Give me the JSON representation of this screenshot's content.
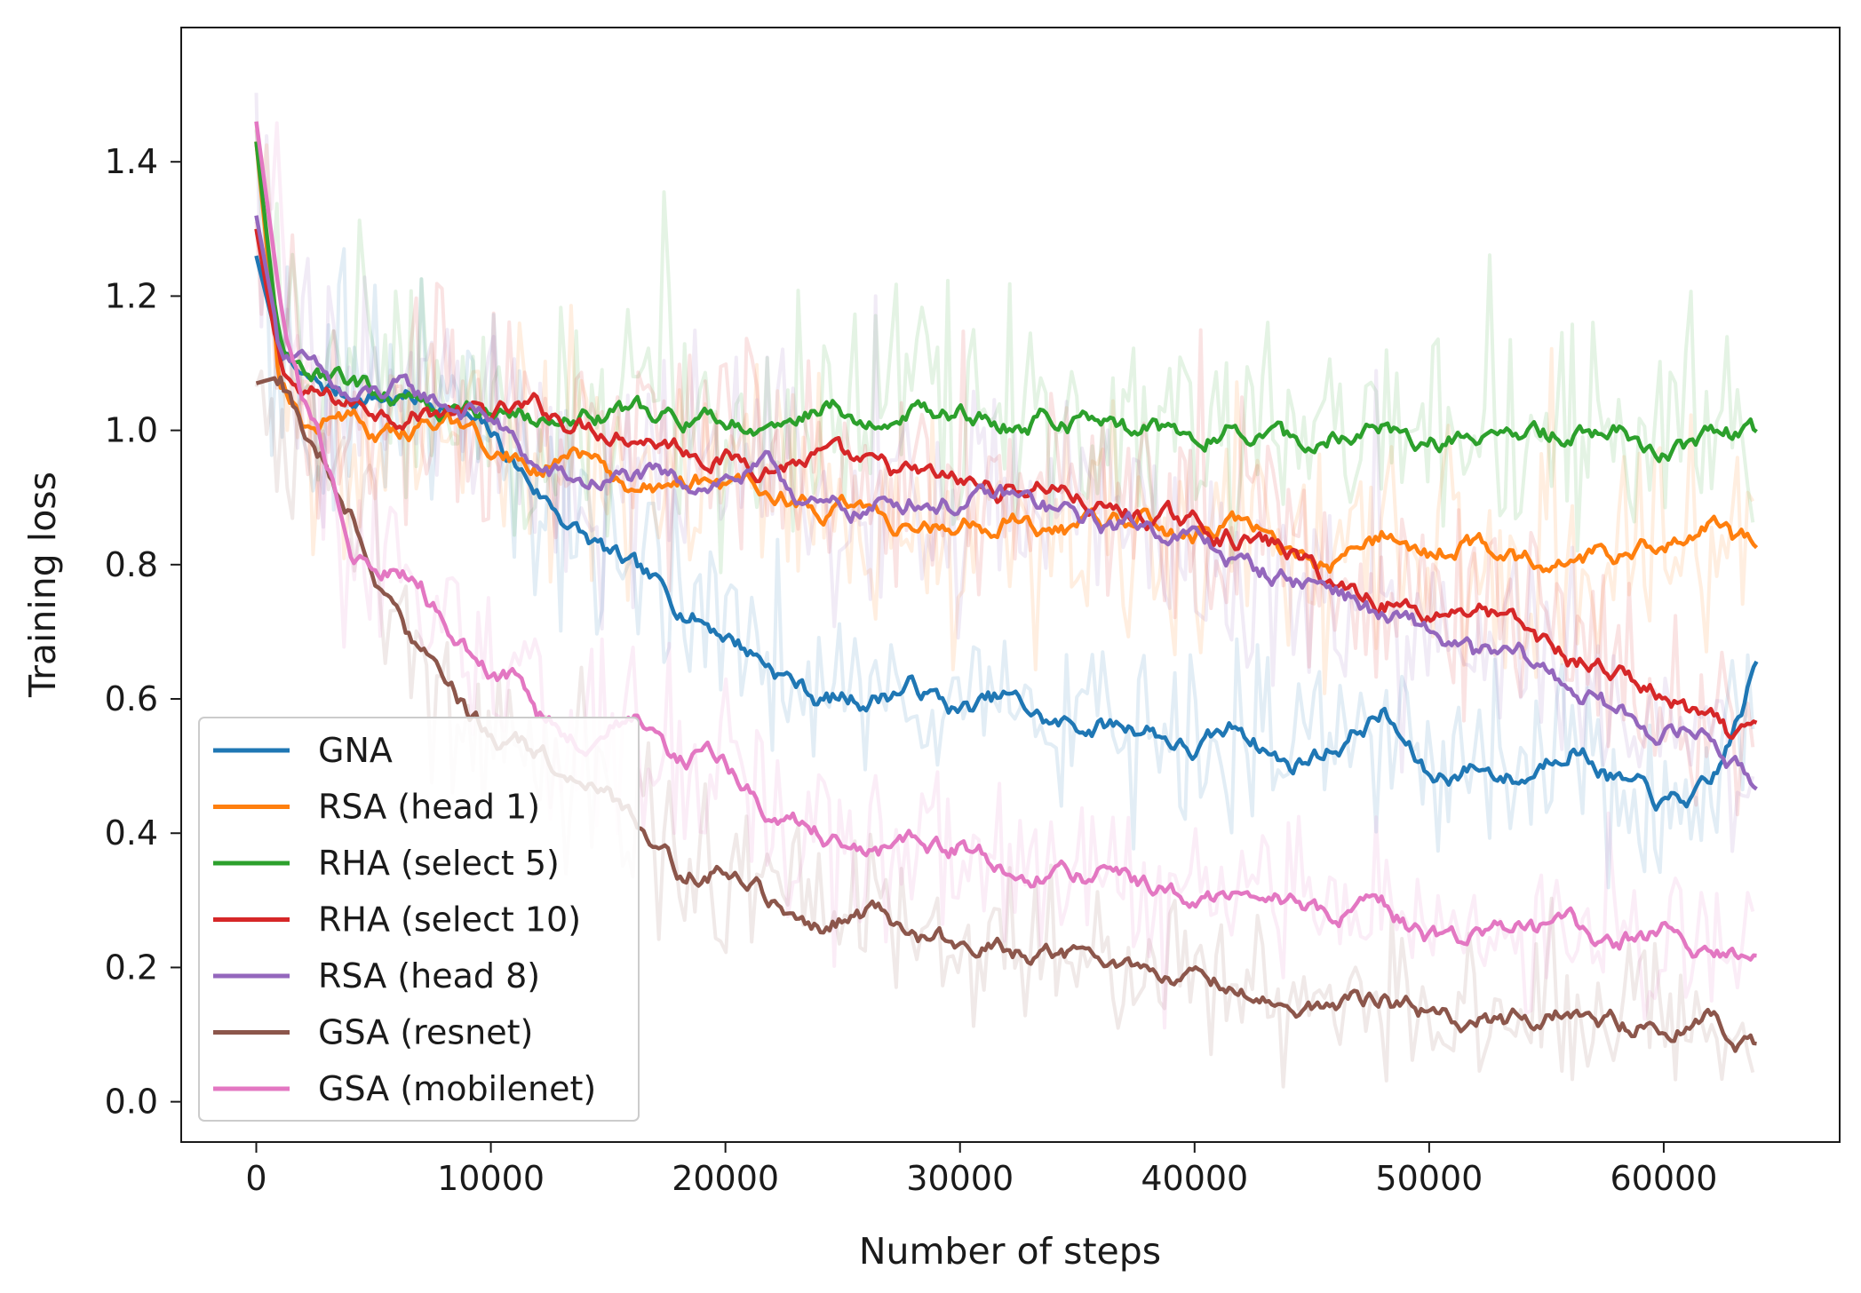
{
  "chart_data": {
    "type": "line",
    "title": "",
    "xlabel": "Number of steps",
    "ylabel": "Training loss",
    "xlim": [
      -3200,
      67500
    ],
    "ylim": [
      -0.06,
      1.6
    ],
    "xticks": [
      0,
      10000,
      20000,
      30000,
      40000,
      50000,
      60000
    ],
    "xtick_labels": [
      "0",
      "10000",
      "20000",
      "30000",
      "40000",
      "50000",
      "60000"
    ],
    "yticks": [
      0.0,
      0.2,
      0.4,
      0.6,
      0.8,
      1.0,
      1.2,
      1.4
    ],
    "ytick_labels": [
      "0.0",
      "0.2",
      "0.4",
      "0.6",
      "0.8",
      "1.0",
      "1.2",
      "1.4"
    ],
    "grid": false,
    "legend_position": "lower-left",
    "note": "Each series is drawn twice: a faint raw trace and a bold smoothed trace",
    "series": [
      {
        "name": "GNA",
        "color": "#1f77b4",
        "x": [
          0,
          1000,
          2000,
          4000,
          6000,
          8000,
          10000,
          12000,
          14000,
          16000,
          18000,
          20000,
          22000,
          24000,
          26000,
          28000,
          30000,
          32000,
          34000,
          36000,
          38000,
          40000,
          42000,
          44000,
          46000,
          48000,
          50000,
          52000,
          54000,
          56000,
          58000,
          60000,
          62000,
          63000,
          64000
        ],
        "y": [
          1.26,
          1.12,
          1.07,
          1.05,
          1.05,
          1.04,
          0.99,
          0.91,
          0.84,
          0.79,
          0.74,
          0.7,
          0.65,
          0.6,
          0.6,
          0.62,
          0.58,
          0.6,
          0.56,
          0.56,
          0.56,
          0.52,
          0.56,
          0.5,
          0.53,
          0.58,
          0.48,
          0.5,
          0.48,
          0.54,
          0.48,
          0.44,
          0.46,
          0.55,
          0.65
        ]
      },
      {
        "name": "RSA (head 1)",
        "color": "#ff7f0e",
        "x": [
          0,
          1000,
          2000,
          4000,
          6000,
          8000,
          10000,
          12000,
          14000,
          16000,
          18000,
          20000,
          22000,
          24000,
          26000,
          28000,
          30000,
          32000,
          34000,
          36000,
          38000,
          40000,
          42000,
          44000,
          46000,
          48000,
          50000,
          52000,
          54000,
          56000,
          58000,
          60000,
          62000,
          63000,
          64000
        ],
        "y": [
          1.43,
          1.08,
          1.02,
          1.01,
          0.99,
          1.0,
          0.97,
          0.95,
          0.96,
          0.9,
          0.93,
          0.92,
          0.92,
          0.88,
          0.87,
          0.86,
          0.85,
          0.87,
          0.84,
          0.86,
          0.87,
          0.84,
          0.87,
          0.82,
          0.8,
          0.84,
          0.82,
          0.83,
          0.8,
          0.82,
          0.81,
          0.84,
          0.86,
          0.83,
          0.82
        ]
      },
      {
        "name": "RHA (select 5)",
        "color": "#2ca02c",
        "x": [
          0,
          1000,
          2000,
          4000,
          6000,
          8000,
          10000,
          12000,
          14000,
          16000,
          18000,
          20000,
          22000,
          24000,
          26000,
          28000,
          30000,
          32000,
          34000,
          36000,
          38000,
          40000,
          42000,
          44000,
          46000,
          48000,
          50000,
          52000,
          54000,
          56000,
          58000,
          60000,
          62000,
          63000,
          64000
        ],
        "y": [
          1.43,
          1.12,
          1.09,
          1.07,
          1.05,
          1.04,
          1.03,
          1.02,
          1.02,
          1.03,
          1.02,
          1.01,
          1.0,
          1.04,
          1.02,
          1.03,
          1.03,
          1.01,
          1.02,
          1.0,
          1.0,
          1.0,
          1.01,
          0.98,
          1.0,
          1.0,
          0.98,
          1.0,
          0.99,
          0.99,
          1.0,
          0.97,
          0.99,
          0.99,
          0.99
        ]
      },
      {
        "name": "RHA (select 10)",
        "color": "#d62728",
        "x": [
          0,
          1000,
          2000,
          4000,
          6000,
          8000,
          10000,
          12000,
          14000,
          16000,
          18000,
          20000,
          22000,
          24000,
          26000,
          28000,
          30000,
          32000,
          34000,
          36000,
          38000,
          40000,
          42000,
          44000,
          46000,
          48000,
          50000,
          52000,
          54000,
          56000,
          58000,
          60000,
          62000,
          63000,
          64000
        ],
        "y": [
          1.3,
          1.1,
          1.05,
          1.04,
          1.03,
          1.03,
          1.02,
          1.03,
          1.01,
          1.0,
          0.98,
          0.96,
          0.95,
          0.96,
          0.94,
          0.93,
          0.92,
          0.91,
          0.92,
          0.88,
          0.87,
          0.86,
          0.84,
          0.82,
          0.77,
          0.75,
          0.73,
          0.74,
          0.7,
          0.66,
          0.64,
          0.6,
          0.56,
          0.53,
          0.55
        ]
      },
      {
        "name": "RSA (head 8)",
        "color": "#9467bd",
        "x": [
          0,
          1000,
          2000,
          4000,
          6000,
          8000,
          10000,
          12000,
          14000,
          16000,
          18000,
          20000,
          22000,
          24000,
          26000,
          28000,
          30000,
          32000,
          34000,
          36000,
          38000,
          40000,
          42000,
          44000,
          46000,
          48000,
          50000,
          52000,
          54000,
          56000,
          58000,
          60000,
          62000,
          63000,
          64000
        ],
        "y": [
          1.32,
          1.13,
          1.1,
          1.04,
          1.06,
          1.04,
          1.02,
          0.94,
          0.92,
          0.93,
          0.92,
          0.93,
          0.94,
          0.88,
          0.88,
          0.9,
          0.89,
          0.9,
          0.88,
          0.86,
          0.86,
          0.84,
          0.8,
          0.78,
          0.77,
          0.72,
          0.7,
          0.66,
          0.66,
          0.62,
          0.58,
          0.55,
          0.55,
          0.5,
          0.47
        ]
      },
      {
        "name": "GSA (resnet)",
        "color": "#8c564b",
        "x": [
          0,
          1000,
          2000,
          3000,
          4000,
          5000,
          6000,
          7000,
          8000,
          9000,
          10000,
          12000,
          14000,
          16000,
          18000,
          20000,
          22000,
          24000,
          26000,
          28000,
          30000,
          32000,
          34000,
          36000,
          38000,
          40000,
          42000,
          44000,
          46000,
          48000,
          50000,
          52000,
          54000,
          56000,
          58000,
          60000,
          62000,
          63000,
          64000
        ],
        "y": [
          1.07,
          1.08,
          1.0,
          0.95,
          0.88,
          0.8,
          0.72,
          0.67,
          0.62,
          0.58,
          0.55,
          0.52,
          0.48,
          0.42,
          0.34,
          0.35,
          0.3,
          0.27,
          0.28,
          0.26,
          0.23,
          0.23,
          0.22,
          0.2,
          0.2,
          0.17,
          0.18,
          0.15,
          0.14,
          0.15,
          0.13,
          0.12,
          0.12,
          0.13,
          0.12,
          0.12,
          0.12,
          0.1,
          0.09
        ]
      },
      {
        "name": "GSA (mobilenet)",
        "color": "#e377c2",
        "x": [
          0,
          1000,
          2000,
          3000,
          4000,
          5000,
          6000,
          7000,
          8000,
          9000,
          10000,
          11000,
          12000,
          14000,
          16000,
          18000,
          20000,
          22000,
          24000,
          26000,
          28000,
          30000,
          32000,
          34000,
          36000,
          38000,
          40000,
          42000,
          44000,
          46000,
          48000,
          50000,
          52000,
          54000,
          56000,
          58000,
          60000,
          62000,
          63000,
          64000
        ],
        "y": [
          1.46,
          1.2,
          1.05,
          0.95,
          0.82,
          0.78,
          0.8,
          0.77,
          0.72,
          0.68,
          0.64,
          0.63,
          0.57,
          0.53,
          0.58,
          0.52,
          0.5,
          0.42,
          0.4,
          0.36,
          0.38,
          0.38,
          0.35,
          0.34,
          0.34,
          0.32,
          0.31,
          0.3,
          0.3,
          0.27,
          0.28,
          0.24,
          0.25,
          0.25,
          0.26,
          0.24,
          0.26,
          0.23,
          0.23,
          0.22
        ]
      }
    ]
  }
}
